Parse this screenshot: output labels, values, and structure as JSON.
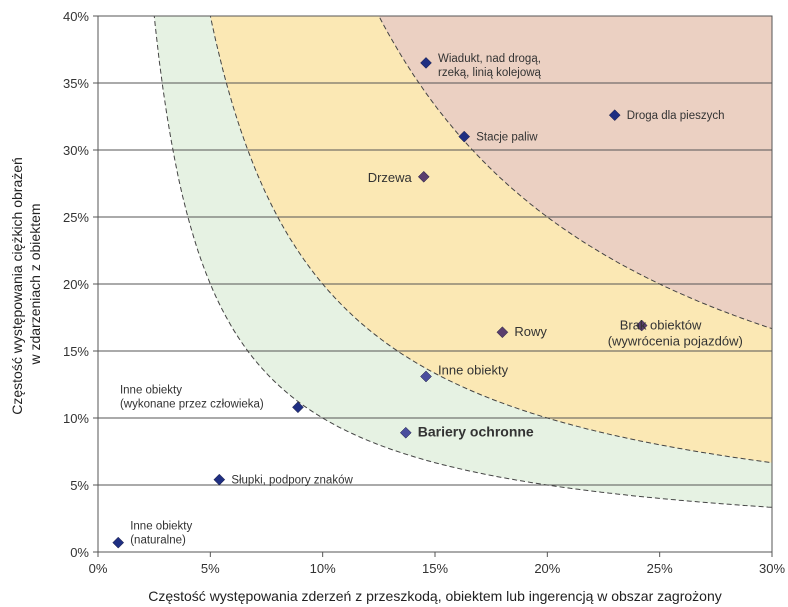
{
  "chart_data": {
    "type": "scatter",
    "xlabel": "Częstość występowania zderzeń z przeszkodą, obiektem lub ingerencją w obszar zagrożony",
    "ylabel_lines": [
      "Częstość występowania ciężkich obrażeń",
      "w zdarzeniach z obiektem"
    ],
    "xlim": [
      0,
      30
    ],
    "ylim": [
      0,
      40
    ],
    "x_ticks": [
      0,
      5,
      10,
      15,
      20,
      25,
      30
    ],
    "x_tick_labels": [
      "0%",
      "5%",
      "10%",
      "15%",
      "20%",
      "25%",
      "30%"
    ],
    "y_ticks": [
      0,
      5,
      10,
      15,
      20,
      25,
      30,
      35,
      40
    ],
    "y_tick_labels": [
      "0%",
      "5%",
      "10%",
      "15%",
      "20%",
      "25%",
      "30%",
      "35%",
      "40%"
    ],
    "grid": "horizontal",
    "zones": [
      {
        "k": 100,
        "color": "#e6f2e3"
      },
      {
        "k": 200,
        "color": "#fbe8b4"
      },
      {
        "k": 500,
        "color": "#ebd0c2"
      }
    ],
    "curves": [
      {
        "k": 100,
        "style": "dashed"
      },
      {
        "k": 200,
        "style": "dashed"
      },
      {
        "k": 500,
        "style": "dashed"
      }
    ],
    "points": [
      {
        "x": 14.6,
        "y": 36.5,
        "lines": [
          "Wiadukt, nad drogą,",
          "rzeką, linią kolejową"
        ],
        "color": "#1f2f82",
        "anchor": "right",
        "size": "small"
      },
      {
        "x": 23.0,
        "y": 32.6,
        "lines": [
          "Droga dla pieszych"
        ],
        "color": "#1f2f82",
        "anchor": "right",
        "size": "small"
      },
      {
        "x": 16.3,
        "y": 31.0,
        "lines": [
          "Stacje paliw"
        ],
        "color": "#1f2f82",
        "anchor": "right",
        "size": "small"
      },
      {
        "x": 14.5,
        "y": 28.0,
        "lines": [
          "Drzewa"
        ],
        "color": "#5a3e6e",
        "anchor": "left",
        "size": "big"
      },
      {
        "x": 18.0,
        "y": 16.4,
        "lines": [
          "Rowy"
        ],
        "color": "#5a3e6e",
        "anchor": "right",
        "size": "big"
      },
      {
        "x": 24.2,
        "y": 16.9,
        "lines": [
          "Brak obiektów",
          "(wywrócenia pojazdów)"
        ],
        "color": "#5a3e6e",
        "anchor": "below-left",
        "size": "big"
      },
      {
        "x": 14.6,
        "y": 13.1,
        "lines": [
          "Inne obiekty"
        ],
        "color": "#4a4e9e",
        "anchor": "right-up",
        "size": "big"
      },
      {
        "x": 8.9,
        "y": 10.8,
        "lines": [
          "Inne obiekty",
          "(wykonane przez człowieka)"
        ],
        "color": "#1f2f82",
        "anchor": "left-up",
        "size": "small"
      },
      {
        "x": 13.7,
        "y": 8.9,
        "lines": [
          "Bariery ochronne"
        ],
        "color": "#4a4e9e",
        "anchor": "right",
        "size": "bold"
      },
      {
        "x": 5.4,
        "y": 5.4,
        "lines": [
          "Słupki, podpory znaków"
        ],
        "color": "#1f2f82",
        "anchor": "right",
        "size": "small"
      },
      {
        "x": 0.9,
        "y": 0.7,
        "lines": [
          "Inne obiekty",
          "(naturalne)"
        ],
        "color": "#1f2f82",
        "anchor": "right-up",
        "size": "small"
      }
    ]
  }
}
